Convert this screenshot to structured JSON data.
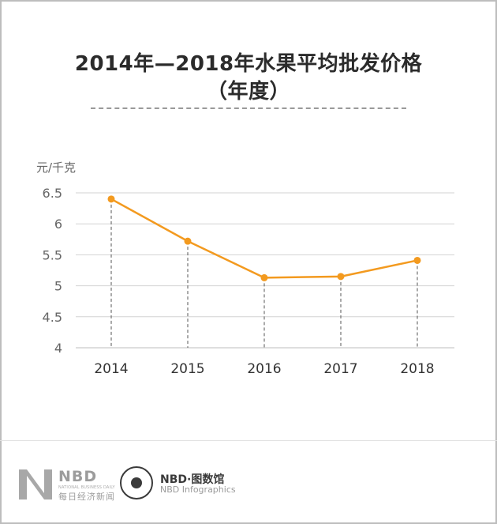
{
  "chart_data": {
    "type": "line",
    "title_line1": "2014年—2018年水果平均批发价格",
    "title_line2": "（年度）",
    "ylabel": "元/千克",
    "categories": [
      "2014",
      "2015",
      "2016",
      "2017",
      "2018"
    ],
    "series": [
      {
        "values": [
          6.4,
          5.72,
          5.13,
          5.15,
          5.41
        ]
      }
    ],
    "ylim": [
      4,
      6.5
    ],
    "yticks": [
      "4",
      "4.5",
      "5",
      "5.5",
      "6",
      "6.5"
    ],
    "grid": true,
    "line_color": "#f39a1f"
  },
  "footer": {
    "brand": "NBD",
    "brand_sub": "NATIONAL BUSINESS DAILY",
    "brand_cn": "每日经济新闻",
    "infographics_title": "NBD·图数馆",
    "infographics_sub": "NBD Infographics"
  }
}
